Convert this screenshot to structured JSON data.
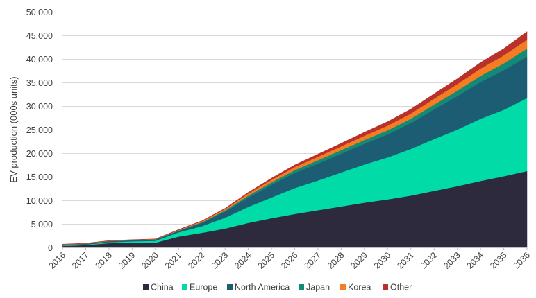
{
  "chart_data": {
    "type": "area",
    "stacked": true,
    "title": "",
    "xlabel": "",
    "ylabel": "EV production (000s units)",
    "ylim": [
      0,
      50000
    ],
    "yticks": [
      0,
      5000,
      10000,
      15000,
      20000,
      25000,
      30000,
      35000,
      40000,
      45000,
      50000
    ],
    "ytick_labels": [
      "0",
      "5,000",
      "10,000",
      "15,000",
      "20,000",
      "25,000",
      "30,000",
      "35,000",
      "40,000",
      "45,000",
      "50,000"
    ],
    "categories": [
      "2016",
      "2017",
      "2018",
      "2019",
      "2020",
      "2021",
      "2022",
      "2023",
      "2024",
      "2025",
      "2026",
      "2027",
      "2028",
      "2029",
      "2030",
      "2031",
      "2032",
      "2033",
      "2034",
      "2035",
      "2036"
    ],
    "grid": true,
    "legend_position": "bottom",
    "series": [
      {
        "name": "China",
        "color": "#2e2a3e",
        "values": [
          300,
          500,
          900,
          1000,
          1000,
          2300,
          3100,
          4000,
          5200,
          6200,
          7100,
          7900,
          8700,
          9500,
          10200,
          11000,
          12000,
          13000,
          14100,
          15100,
          16200
        ]
      },
      {
        "name": "Europe",
        "color": "#00dba8",
        "values": [
          100,
          100,
          200,
          300,
          400,
          900,
          1400,
          2300,
          3400,
          4400,
          5500,
          6300,
          7200,
          8100,
          8900,
          9900,
          11000,
          12000,
          13200,
          14100,
          15500
        ]
      },
      {
        "name": "North America",
        "color": "#1d5d73",
        "values": [
          150,
          150,
          200,
          200,
          250,
          300,
          700,
          1300,
          2000,
          2700,
          3200,
          3600,
          4000,
          4400,
          4900,
          5500,
          6300,
          7100,
          7800,
          8400,
          8800
        ]
      },
      {
        "name": "Japan",
        "color": "#128a76",
        "values": [
          50,
          50,
          50,
          50,
          50,
          100,
          150,
          250,
          400,
          500,
          600,
          700,
          750,
          800,
          850,
          900,
          1000,
          1150,
          1300,
          1450,
          1700
        ]
      },
      {
        "name": "Korea",
        "color": "#f47c22",
        "values": [
          50,
          50,
          50,
          50,
          50,
          100,
          200,
          300,
          450,
          550,
          650,
          750,
          800,
          900,
          1000,
          1100,
          1250,
          1400,
          1550,
          1700,
          1900
        ]
      },
      {
        "name": "Other",
        "color": "#b9312b",
        "values": [
          50,
          50,
          50,
          50,
          50,
          100,
          100,
          150,
          250,
          350,
          450,
          550,
          650,
          750,
          850,
          950,
          1050,
          1150,
          1300,
          1450,
          1700
        ]
      }
    ]
  }
}
